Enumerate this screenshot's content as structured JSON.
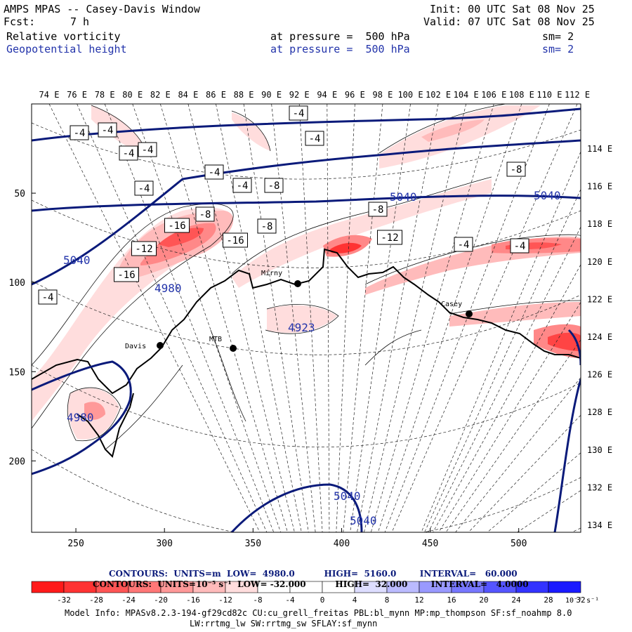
{
  "header": {
    "title": "AMPS MPAS -- Casey-Davis Window",
    "fcst_label": "Fcst:",
    "fcst_value": "7 h",
    "init": "Init: 00 UTC Sat 08 Nov 25",
    "valid": "Valid: 07 UTC Sat 08 Nov 25",
    "field1_name": "Relative vorticity",
    "field1_level": "at pressure =  500 hPa",
    "field1_sm": "sm= 2",
    "field2_name": "Geopotential height",
    "field2_level": "at pressure =  500 hPa",
    "field2_sm": "sm= 2"
  },
  "chart_data": {
    "type": "heatmap",
    "title": "Relative vorticity / Geopotential height at 500 hPa",
    "x_ticks": [
      250,
      300,
      350,
      400,
      450,
      500
    ],
    "y_ticks": [
      50,
      100,
      150,
      200
    ],
    "top_lon_labels": [
      "74 E",
      "76 E",
      "78 E",
      "80 E",
      "82 E",
      "84 E",
      "86 E",
      "88 E",
      "90 E",
      "92 E",
      "94 E",
      "96 E",
      "98 E",
      "100 E",
      "102 E",
      "104 E",
      "106 E",
      "108 E",
      "110 E",
      "112 E"
    ],
    "right_lon_labels": [
      "114 E",
      "116 E",
      "118 E",
      "120 E",
      "122 E",
      "124 E",
      "126 E",
      "128 E",
      "130 E",
      "132 E",
      "134 E"
    ],
    "stations": [
      "Davis",
      "MTB",
      "Mirny",
      "Casey"
    ],
    "height_contour_labels": [
      "5040",
      "5040",
      "5040",
      "4980",
      "4923",
      "5040",
      "5040",
      "4980"
    ],
    "vorticity_contour_labels": [
      "-4",
      "-4",
      "-4",
      "-4",
      "-4",
      "-4",
      "-4",
      "-4",
      "-4",
      "-8",
      "-8",
      "-8",
      "-8",
      "-16",
      "-16",
      "-12",
      "-12",
      "-16",
      "-4",
      "-8",
      "-4",
      "-4"
    ],
    "contour_info_1": {
      "label": "CONTOURS:",
      "units": "UNITS=m",
      "low": "LOW=  4980.0",
      "high": "HIGH=  5160.0",
      "interval": "INTERVAL=   60.000"
    },
    "contour_info_2": {
      "label": "CONTOURS:",
      "units": "UNITS=10⁻⁵ s⁻¹",
      "low": "LOW= -32.000",
      "high": "HIGH=  32.000",
      "interval": "INTERVAL=   4.0000"
    },
    "colorbar": {
      "levels": [
        -32,
        -28,
        -24,
        -20,
        -16,
        -12,
        -8,
        -4,
        0,
        4,
        8,
        12,
        16,
        20,
        24,
        28,
        32
      ],
      "colors": [
        "#ff1a1a",
        "#ff3333",
        "#ff5555",
        "#ff7777",
        "#ff9999",
        "#ffbbbb",
        "#ffdddd",
        "#ffffff",
        "#ffffff",
        "#ffffff",
        "#ddddff",
        "#bbbbff",
        "#9999ff",
        "#7777ff",
        "#5555ff",
        "#3333ff",
        "#1a1aff"
      ],
      "units": "10⁻⁵ s⁻¹"
    }
  },
  "footer": {
    "model_info": "Model Info: MPASv8.2.3-194-gf29cd82c CU:cu_grell_freitas PBL:bl_mynn MP:mp_thompson SF:sf_noahmp 8.0",
    "model_info2": "LW:rrtmg_lw SW:rrtmg_sw SFLAY:sf_mynn"
  }
}
